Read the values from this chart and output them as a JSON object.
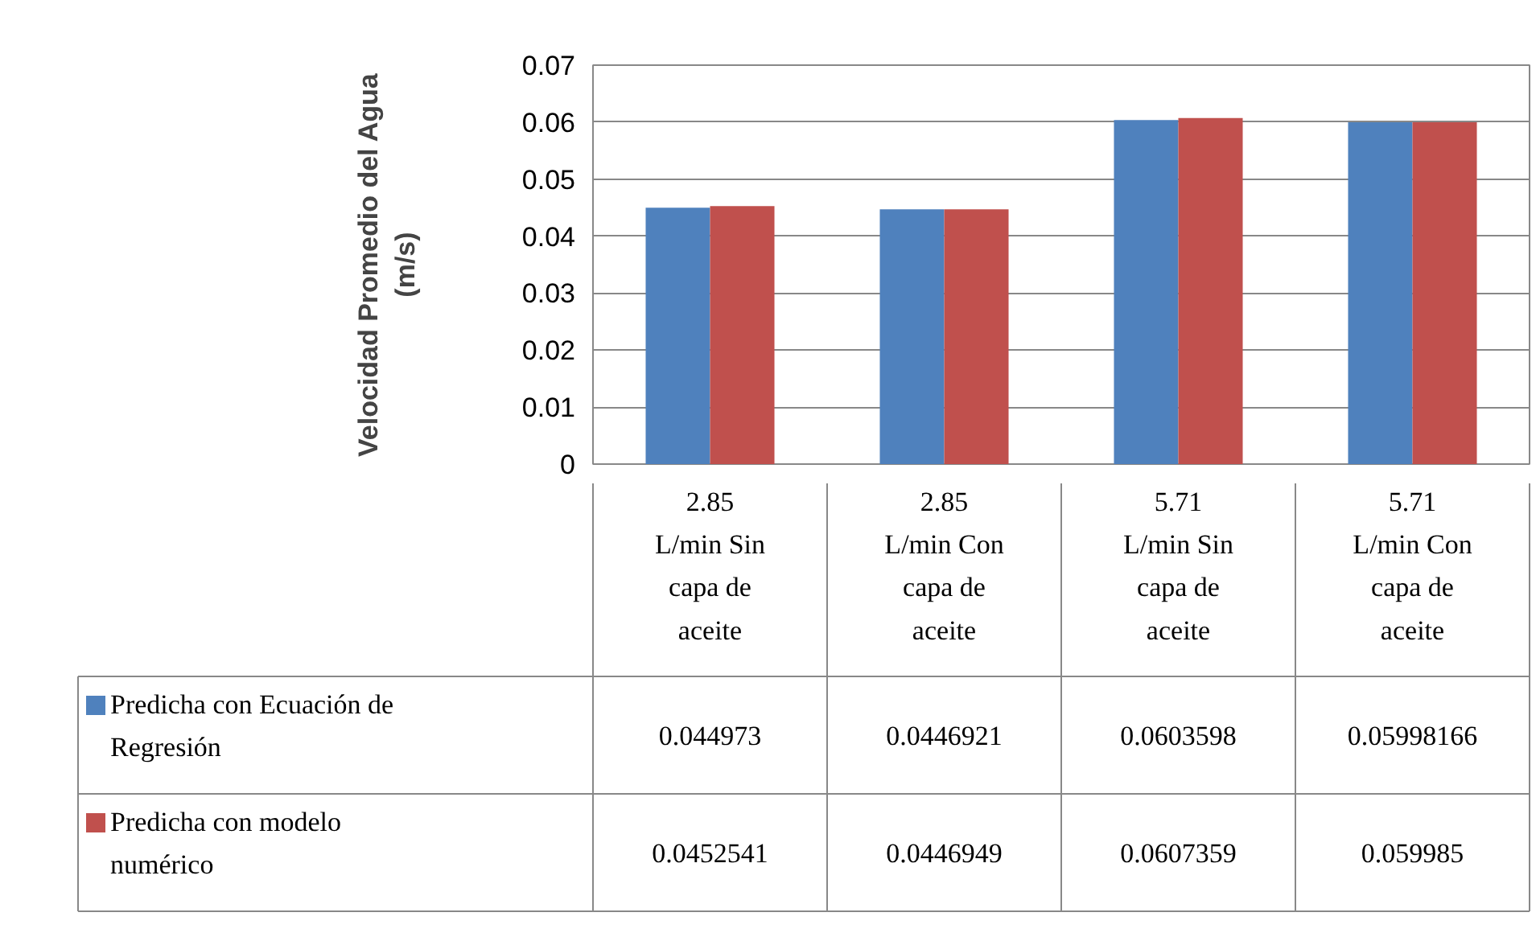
{
  "chart_data": {
    "type": "bar",
    "ylabel": "Velocidad Promedio del Agua (m/s)",
    "categories": [
      "2.85 L/min Sin capa de aceite",
      "2.85 L/min Con capa de aceite",
      "5.71 L/min Sin capa de aceite",
      "5.71 L/min Con capa de aceite"
    ],
    "series": [
      {
        "name": "Predicha con Ecuación de Regresión",
        "color": "#4f81bd",
        "values": [
          0.044973,
          0.0446921,
          0.0603598,
          0.05998166
        ]
      },
      {
        "name": "Predicha con modelo numérico",
        "color": "#c0504d",
        "values": [
          0.0452541,
          0.0446949,
          0.0607359,
          0.059985
        ]
      }
    ],
    "ylim": [
      0,
      0.07
    ],
    "yticks": [
      0,
      0.01,
      0.02,
      0.03,
      0.04,
      0.05,
      0.06,
      0.07
    ],
    "grid": "y",
    "legend": "bottom",
    "data_labels": true
  }
}
